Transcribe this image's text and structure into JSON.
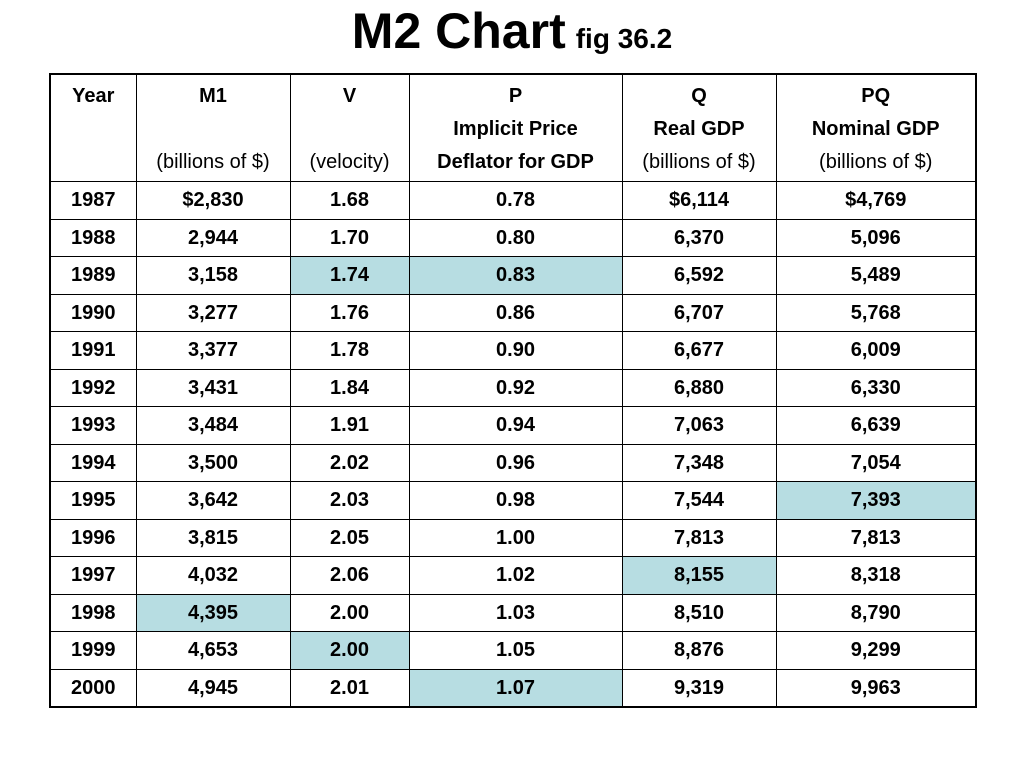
{
  "title": {
    "main": "M2 Chart",
    "sub": "fig 36.2"
  },
  "colors": {
    "highlight": "#b7dde2",
    "border": "#000000",
    "background": "#ffffff"
  },
  "chart_data": {
    "type": "table",
    "title": "M2 Chart fig 36.2",
    "columns": [
      {
        "key": "year",
        "lines": [
          {
            "text": "Year",
            "bold": true
          }
        ]
      },
      {
        "key": "m1",
        "lines": [
          {
            "text": "M1",
            "bold": true
          },
          {
            "text": "",
            "bold": false
          },
          {
            "text": "(billions of $)",
            "bold": false
          }
        ]
      },
      {
        "key": "v",
        "lines": [
          {
            "text": "V",
            "bold": true
          },
          {
            "text": "",
            "bold": false
          },
          {
            "text": "(velocity)",
            "bold": false
          }
        ]
      },
      {
        "key": "p",
        "lines": [
          {
            "text": "P",
            "bold": true
          },
          {
            "text": "Implicit Price",
            "bold": true
          },
          {
            "text": "Deflator for GDP",
            "bold": true
          }
        ]
      },
      {
        "key": "q",
        "lines": [
          {
            "text": "Q",
            "bold": true
          },
          {
            "text": "Real GDP",
            "bold": true
          },
          {
            "text": "(billions of $)",
            "bold": false
          }
        ]
      },
      {
        "key": "pq",
        "lines": [
          {
            "text": "PQ",
            "bold": true
          },
          {
            "text": "Nominal GDP",
            "bold": true
          },
          {
            "text": "(billions of $)",
            "bold": false
          }
        ]
      }
    ],
    "rows": [
      [
        "1987",
        "$2,830",
        "1.68",
        "0.78",
        "$6,114",
        "$4,769"
      ],
      [
        "1988",
        "2,944",
        "1.70",
        "0.80",
        "6,370",
        "5,096"
      ],
      [
        "1989",
        "3,158",
        "1.74",
        "0.83",
        "6,592",
        "5,489"
      ],
      [
        "1990",
        "3,277",
        "1.76",
        "0.86",
        "6,707",
        "5,768"
      ],
      [
        "1991",
        "3,377",
        "1.78",
        "0.90",
        "6,677",
        "6,009"
      ],
      [
        "1992",
        "3,431",
        "1.84",
        "0.92",
        "6,880",
        "6,330"
      ],
      [
        "1993",
        "3,484",
        "1.91",
        "0.94",
        "7,063",
        "6,639"
      ],
      [
        "1994",
        "3,500",
        "2.02",
        "0.96",
        "7,348",
        "7,054"
      ],
      [
        "1995",
        "3,642",
        "2.03",
        "0.98",
        "7,544",
        "7,393"
      ],
      [
        "1996",
        "3,815",
        "2.05",
        "1.00",
        "7,813",
        "7,813"
      ],
      [
        "1997",
        "4,032",
        "2.06",
        "1.02",
        "8,155",
        "8,318"
      ],
      [
        "1998",
        "4,395",
        "2.00",
        "1.03",
        "8,510",
        "8,790"
      ],
      [
        "1999",
        "4,653",
        "2.00",
        "1.05",
        "8,876",
        "9,299"
      ],
      [
        "2000",
        "4,945",
        "2.01",
        "1.07",
        "9,319",
        "9,963"
      ]
    ],
    "highlighted_cells": [
      {
        "year": "1989",
        "column": "v"
      },
      {
        "year": "1989",
        "column": "p"
      },
      {
        "year": "1995",
        "column": "pq"
      },
      {
        "year": "1997",
        "column": "q"
      },
      {
        "year": "1998",
        "column": "m1"
      },
      {
        "year": "1999",
        "column": "v"
      },
      {
        "year": "2000",
        "column": "p"
      }
    ]
  }
}
